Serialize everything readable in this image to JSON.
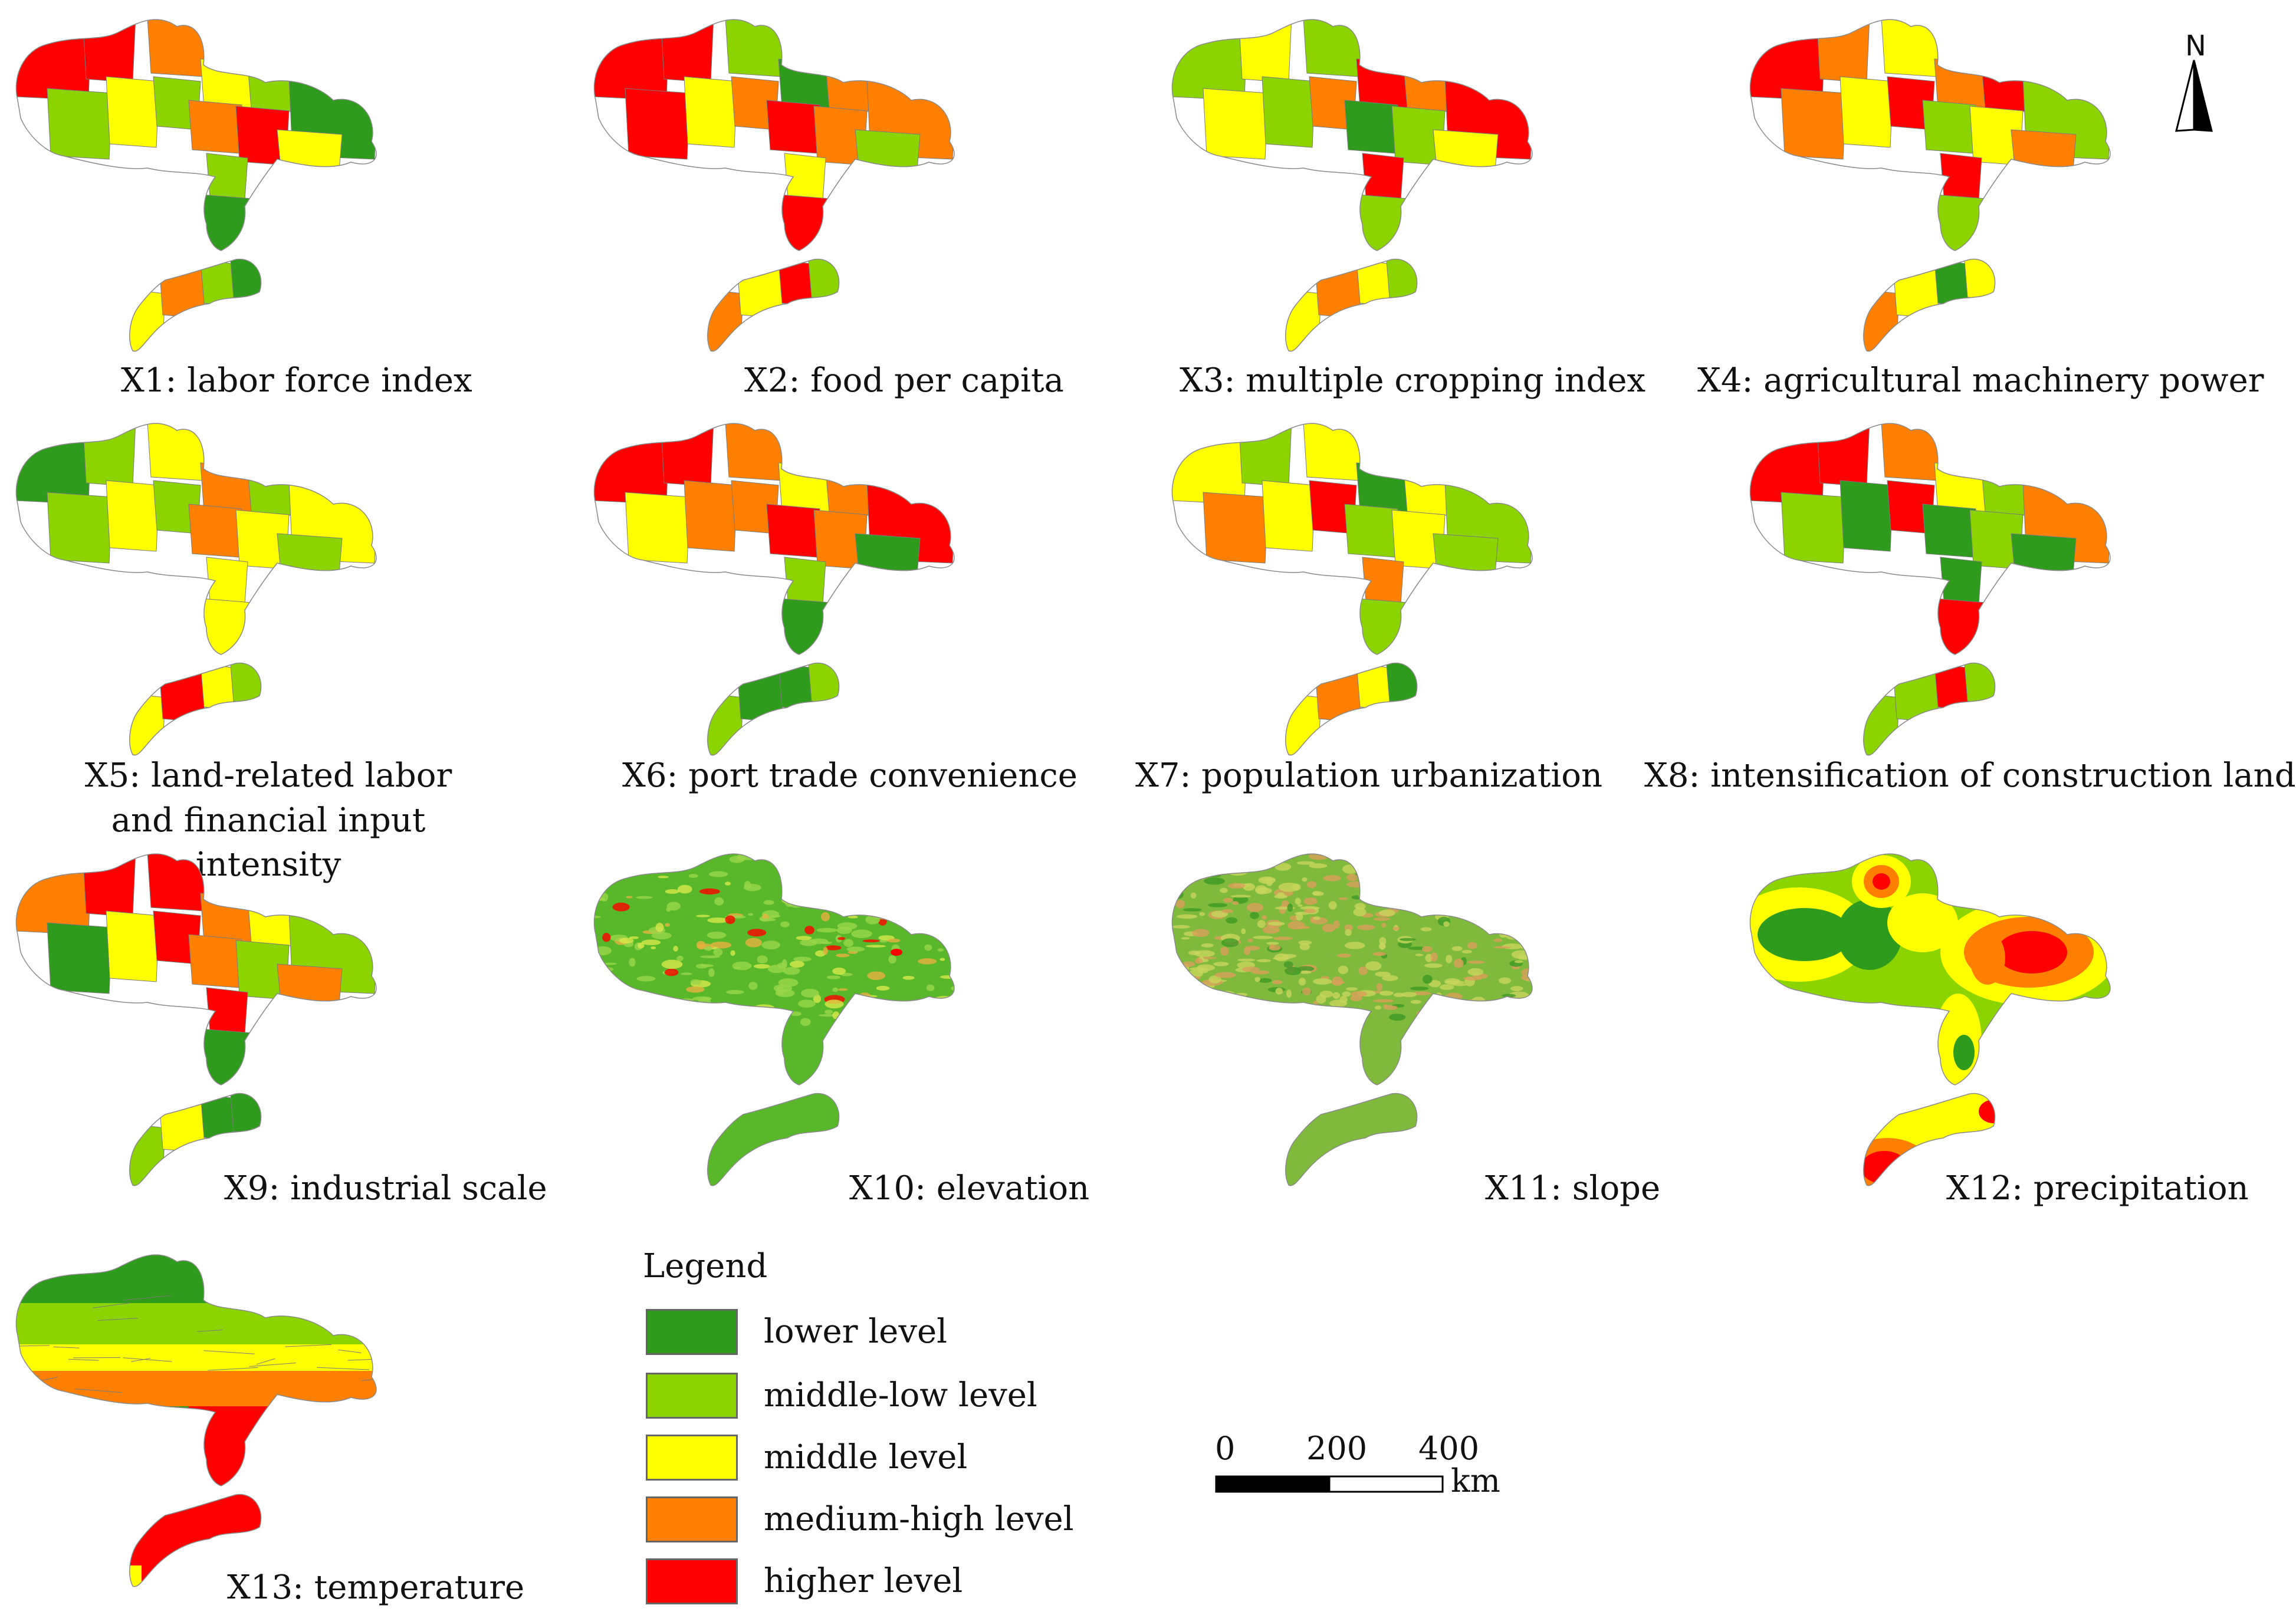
{
  "colors": {
    "lower": "#2e9b1d",
    "middle_low": "#8cd400",
    "middle": "#ffff00",
    "medium_high": "#ff8000",
    "higher": "#ff0000"
  },
  "panels": [
    {
      "id": "x1",
      "caption": "X1: labor force index"
    },
    {
      "id": "x2",
      "caption": "X2: food per capita"
    },
    {
      "id": "x3",
      "caption": "X3: multiple cropping index"
    },
    {
      "id": "x4",
      "caption": "X4: agricultural machinery power"
    },
    {
      "id": "x5",
      "caption": "X5: land-related labor and financial input intensity"
    },
    {
      "id": "x6",
      "caption": "X6: port trade convenience"
    },
    {
      "id": "x7",
      "caption": "X7: population urbanization"
    },
    {
      "id": "x8",
      "caption": "X8: intensification of construction land"
    },
    {
      "id": "x9",
      "caption": "X9: industrial scale"
    },
    {
      "id": "x10",
      "caption": "X10: elevation"
    },
    {
      "id": "x11",
      "caption": "X11: slope"
    },
    {
      "id": "x12",
      "caption": "X12: precipitation"
    },
    {
      "id": "x13",
      "caption": "X13: temperature"
    }
  ],
  "legend": {
    "title": "Legend",
    "items": [
      {
        "label": "lower level",
        "color": "#2e9b1d"
      },
      {
        "label": "middle-low level",
        "color": "#8cd400"
      },
      {
        "label": "middle level",
        "color": "#ffff00"
      },
      {
        "label": "medium-high level",
        "color": "#ff8000"
      },
      {
        "label": "higher level",
        "color": "#ff0000"
      }
    ]
  },
  "scalebar": {
    "ticks": [
      "0",
      "200",
      "400"
    ],
    "unit": "km"
  },
  "north_arrow": {
    "label": "N",
    "icon": "north-arrow-icon"
  }
}
